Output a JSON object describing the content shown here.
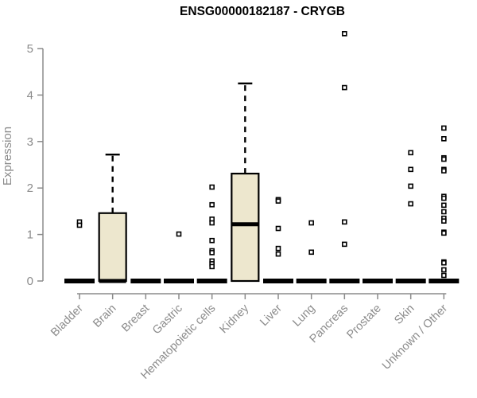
{
  "chart_data": {
    "type": "boxplot",
    "title": "ENSG00000182187 - CRYGB",
    "xlabel": "",
    "ylabel": "Expression",
    "ylim": [
      0,
      5
    ],
    "yticks": [
      0,
      1,
      2,
      3,
      4,
      5
    ],
    "grid": false,
    "legend": "none",
    "categories": [
      "Bladder",
      "Brain",
      "Breast",
      "Gastric",
      "Hematopoietic cells",
      "Kidney",
      "Liver",
      "Lung",
      "Pancreas",
      "Prostate",
      "Skin",
      "Unknown / Other"
    ],
    "boxes": [
      {
        "category": "Bladder",
        "q1": 0,
        "median": 0,
        "q3": 0,
        "whisker_low": 0,
        "whisker_high": 0,
        "outliers": [
          1.27,
          1.2
        ]
      },
      {
        "category": "Brain",
        "q1": 0,
        "median": 0,
        "q3": 1.46,
        "whisker_low": 0,
        "whisker_high": 2.72,
        "outliers": []
      },
      {
        "category": "Breast",
        "q1": 0,
        "median": 0,
        "q3": 0,
        "whisker_low": 0,
        "whisker_high": 0,
        "outliers": []
      },
      {
        "category": "Gastric",
        "q1": 0,
        "median": 0,
        "q3": 0,
        "whisker_low": 0,
        "whisker_high": 0,
        "outliers": [
          1.01
        ]
      },
      {
        "category": "Hematopoietic cells",
        "q1": 0,
        "median": 0,
        "q3": 0,
        "whisker_low": 0,
        "whisker_high": 0,
        "outliers": [
          2.02,
          1.64,
          1.33,
          1.25,
          0.87,
          0.65,
          0.61,
          0.43,
          0.37,
          0.31
        ]
      },
      {
        "category": "Kidney",
        "q1": 0,
        "median": 1.22,
        "q3": 2.31,
        "whisker_low": 0,
        "whisker_high": 4.25,
        "outliers": []
      },
      {
        "category": "Liver",
        "q1": 0,
        "median": 0,
        "q3": 0,
        "whisker_low": 0,
        "whisker_high": 0,
        "outliers": [
          1.75,
          1.72,
          1.13,
          0.7,
          0.58
        ]
      },
      {
        "category": "Lung",
        "q1": 0,
        "median": 0,
        "q3": 0,
        "whisker_low": 0,
        "whisker_high": 0,
        "outliers": [
          1.25,
          0.62
        ]
      },
      {
        "category": "Pancreas",
        "q1": 0,
        "median": 0,
        "q3": 0,
        "whisker_low": 0,
        "whisker_high": 0,
        "outliers": [
          5.32,
          4.16,
          1.27,
          0.79
        ]
      },
      {
        "category": "Prostate",
        "q1": 0,
        "median": 0,
        "q3": 0,
        "whisker_low": 0,
        "whisker_high": 0,
        "outliers": []
      },
      {
        "category": "Skin",
        "q1": 0,
        "median": 0,
        "q3": 0,
        "whisker_low": 0,
        "whisker_high": 0,
        "outliers": [
          2.76,
          2.4,
          2.04,
          1.66
        ]
      },
      {
        "category": "Unknown / Other",
        "q1": 0,
        "median": 0,
        "q3": 0,
        "whisker_low": 0,
        "whisker_high": 0,
        "outliers": [
          3.29,
          3.06,
          2.65,
          2.62,
          2.4,
          2.37,
          1.82,
          1.78,
          1.63,
          1.49,
          1.35,
          1.29,
          1.05,
          1.03,
          0.41,
          0.39,
          0.24,
          0.12
        ]
      }
    ],
    "colors": {
      "box_fill": "#EDE7CE",
      "box_border": "#000000",
      "median": "#000000",
      "whisker": "#000000",
      "outlier_stroke": "#000000",
      "outlier_fill": "#FFFFFF",
      "axis_line": "#8B8B8B",
      "axis_text": "#8B8B8B",
      "title": "#000000",
      "background": "#FFFFFF"
    }
  }
}
